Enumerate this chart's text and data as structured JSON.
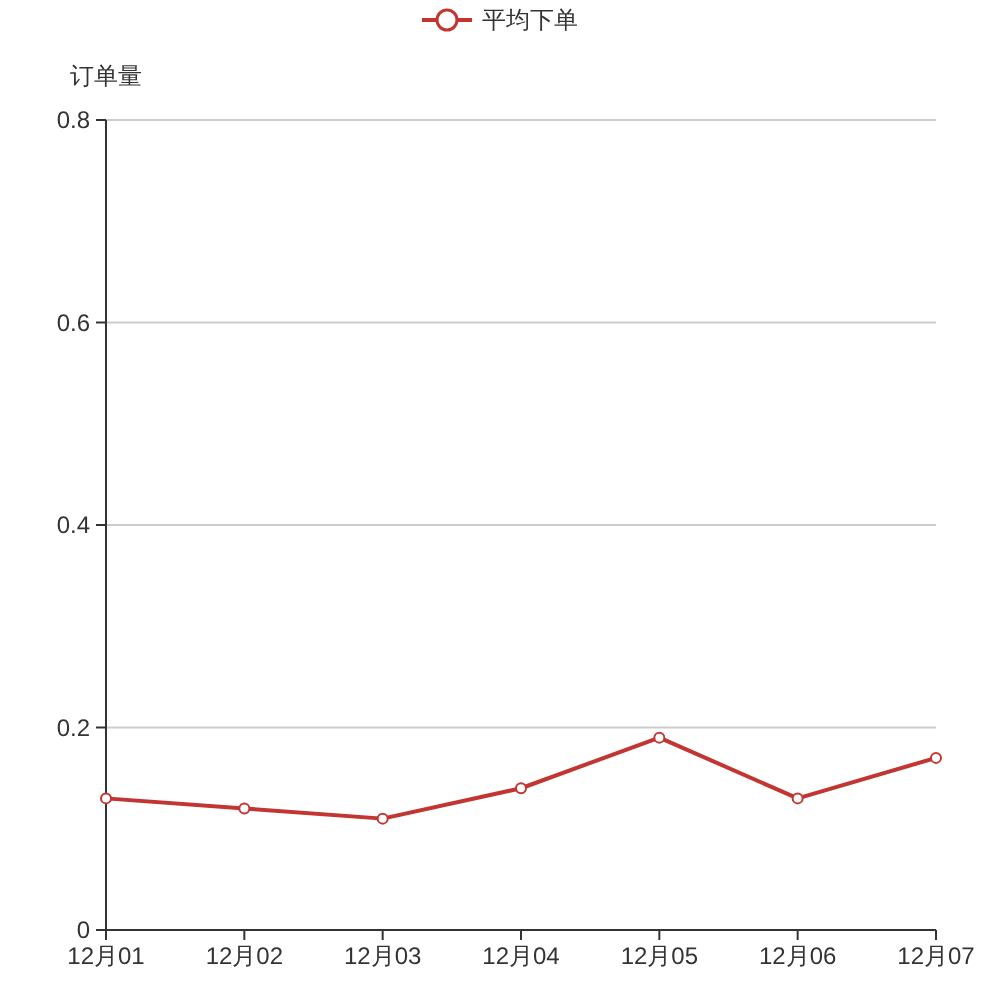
{
  "chart_data": {
    "type": "line",
    "ylabel": "订单量",
    "categories": [
      "12月01",
      "12月02",
      "12月03",
      "12月04",
      "12月05",
      "12月06",
      "12月07"
    ],
    "series": [
      {
        "name": "平均下单",
        "color": "#c23531",
        "values": [
          0.13,
          0.12,
          0.11,
          0.14,
          0.19,
          0.13,
          0.17
        ]
      }
    ],
    "ylim": [
      0,
      0.8
    ],
    "yticks": [
      0,
      0.2,
      0.4,
      0.6,
      0.8
    ],
    "grid": "y",
    "legend": "top",
    "marker": "circle",
    "line_style": "solid"
  }
}
